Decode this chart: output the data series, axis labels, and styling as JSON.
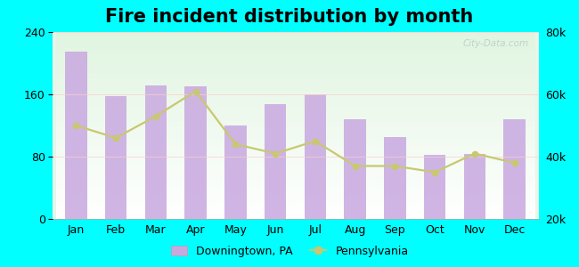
{
  "title": "Fire incident distribution by month",
  "months": [
    "Jan",
    "Feb",
    "Mar",
    "Apr",
    "May",
    "Jun",
    "Jul",
    "Aug",
    "Sep",
    "Oct",
    "Nov",
    "Dec"
  ],
  "bar_values": [
    215,
    158,
    172,
    170,
    120,
    148,
    160,
    128,
    105,
    82,
    83,
    128
  ],
  "line_values": [
    50000,
    46000,
    53000,
    61000,
    44000,
    41000,
    45000,
    37000,
    37000,
    35000,
    41000,
    38000
  ],
  "bar_color": "#c8a8e0",
  "line_color": "#c8c870",
  "bar_ylim": [
    0,
    240
  ],
  "line_ylim": [
    20000,
    80000
  ],
  "bar_yticks": [
    0,
    80,
    160,
    240
  ],
  "line_yticks": [
    20000,
    40000,
    60000,
    80000
  ],
  "background_outer": "#00ffff",
  "background_inner_top": "#d8edd8",
  "background_inner_bottom": "#f0faf0",
  "title_fontsize": 15,
  "tick_fontsize": 9,
  "legend_label_bar": "Downingtown, PA",
  "legend_label_line": "Pennsylvania",
  "watermark": "City-Data.com"
}
